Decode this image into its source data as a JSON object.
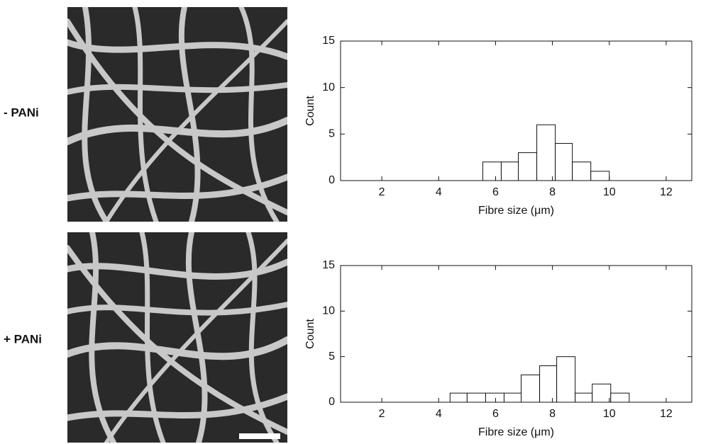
{
  "chart_data": [
    {
      "type": "histogram",
      "panel_label": "- PANi",
      "x_label": "Fibre size (μm)",
      "y_label": "Count",
      "bins": [
        5.55,
        6.2,
        6.8,
        7.45,
        8.1,
        8.7,
        9.35,
        10.0
      ],
      "values": [
        2,
        2,
        3,
        6,
        4,
        2,
        1
      ],
      "xlim": [
        0.55,
        12.9
      ],
      "xticks": [
        2,
        4,
        6,
        8,
        10,
        12
      ],
      "ylim": [
        0,
        15
      ],
      "yticks": [
        0,
        5,
        10,
        15
      ],
      "color": "#ffffff"
    },
    {
      "type": "histogram",
      "panel_label": "+ PANi",
      "x_label": "Fibre size (μm)",
      "y_label": "Count",
      "bins": [
        4.4,
        5.0,
        5.65,
        6.3,
        6.9,
        7.55,
        8.15,
        8.8,
        9.4,
        10.05,
        10.7
      ],
      "values": [
        1,
        1,
        1,
        1,
        3,
        4,
        5,
        1,
        2,
        1
      ],
      "xlim": [
        0.55,
        12.9
      ],
      "xticks": [
        2,
        4,
        6,
        8,
        10,
        12
      ],
      "ylim": [
        0,
        15
      ],
      "yticks": [
        0,
        5,
        10,
        15
      ],
      "color": "#ffffff"
    }
  ]
}
